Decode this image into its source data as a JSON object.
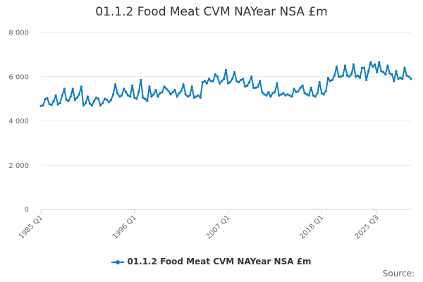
{
  "chart_data": {
    "type": "line",
    "title": "01.1.2 Food Meat CVM NAYear NSA £m",
    "xlabel": "",
    "ylabel": "",
    "ylim": [
      0,
      8000
    ],
    "y_ticks": [
      0,
      2000,
      4000,
      6000,
      8000
    ],
    "y_tick_labels": [
      "0",
      "2 000",
      "4 000",
      "6 000",
      "8 000"
    ],
    "x_tick_labels": [
      "1985 Q1",
      "1996 Q1",
      "2007 Q1",
      "2018 Q1",
      "2025 Q3"
    ],
    "grid": true,
    "legend_position": "bottom",
    "source_label": "Source:",
    "series": [
      {
        "name": "01.1.2 Food Meat CVM NAYear NSA £m",
        "color": "#0b7bbf",
        "x_start": "1985 Q1",
        "frequency": "quarterly",
        "values": [
          4680,
          4700,
          4980,
          5030,
          4760,
          4720,
          4890,
          5150,
          4750,
          4800,
          5150,
          5450,
          4950,
          4900,
          5100,
          5450,
          4950,
          5050,
          5200,
          5550,
          4700,
          4800,
          5100,
          4780,
          4700,
          4900,
          5050,
          5000,
          4700,
          4800,
          5000,
          4950,
          4850,
          4950,
          5200,
          5650,
          5250,
          5100,
          5150,
          5450,
          5300,
          5150,
          5100,
          5600,
          5050,
          5000,
          5300,
          5850,
          5050,
          5000,
          4900,
          5550,
          5100,
          5200,
          5400,
          5100,
          5250,
          5300,
          5550,
          5450,
          5350,
          5200,
          5300,
          5400,
          5100,
          5250,
          5350,
          5650,
          5200,
          5100,
          5150,
          5550,
          5050,
          5100,
          5150,
          5050,
          5750,
          5800,
          5700,
          5900,
          5800,
          5800,
          6100,
          6000,
          5700,
          5800,
          5900,
          6300,
          5700,
          5750,
          5900,
          6200,
          5800,
          5750,
          5850,
          5900,
          5550,
          5600,
          5750,
          6000,
          5500,
          5500,
          5550,
          5800,
          5300,
          5200,
          5150,
          5300,
          5100,
          5250,
          5300,
          5700,
          5150,
          5200,
          5250,
          5150,
          5200,
          5150,
          5100,
          5450,
          5300,
          5350,
          5500,
          5600,
          5250,
          5200,
          5150,
          5500,
          5150,
          5100,
          5250,
          5750,
          5250,
          5200,
          5350,
          5950,
          5800,
          5850,
          6050,
          6450,
          6000,
          6000,
          6050,
          6500,
          6050,
          6000,
          6100,
          6550,
          6000,
          6050,
          5950,
          6400,
          6400,
          5850,
          6250,
          6650,
          6450,
          6550,
          6200,
          6650,
          6250,
          6200,
          6100,
          6500,
          6150,
          6100,
          5800,
          6250,
          5900,
          5950,
          5900,
          6400,
          6050,
          6000,
          5900
        ]
      }
    ]
  }
}
